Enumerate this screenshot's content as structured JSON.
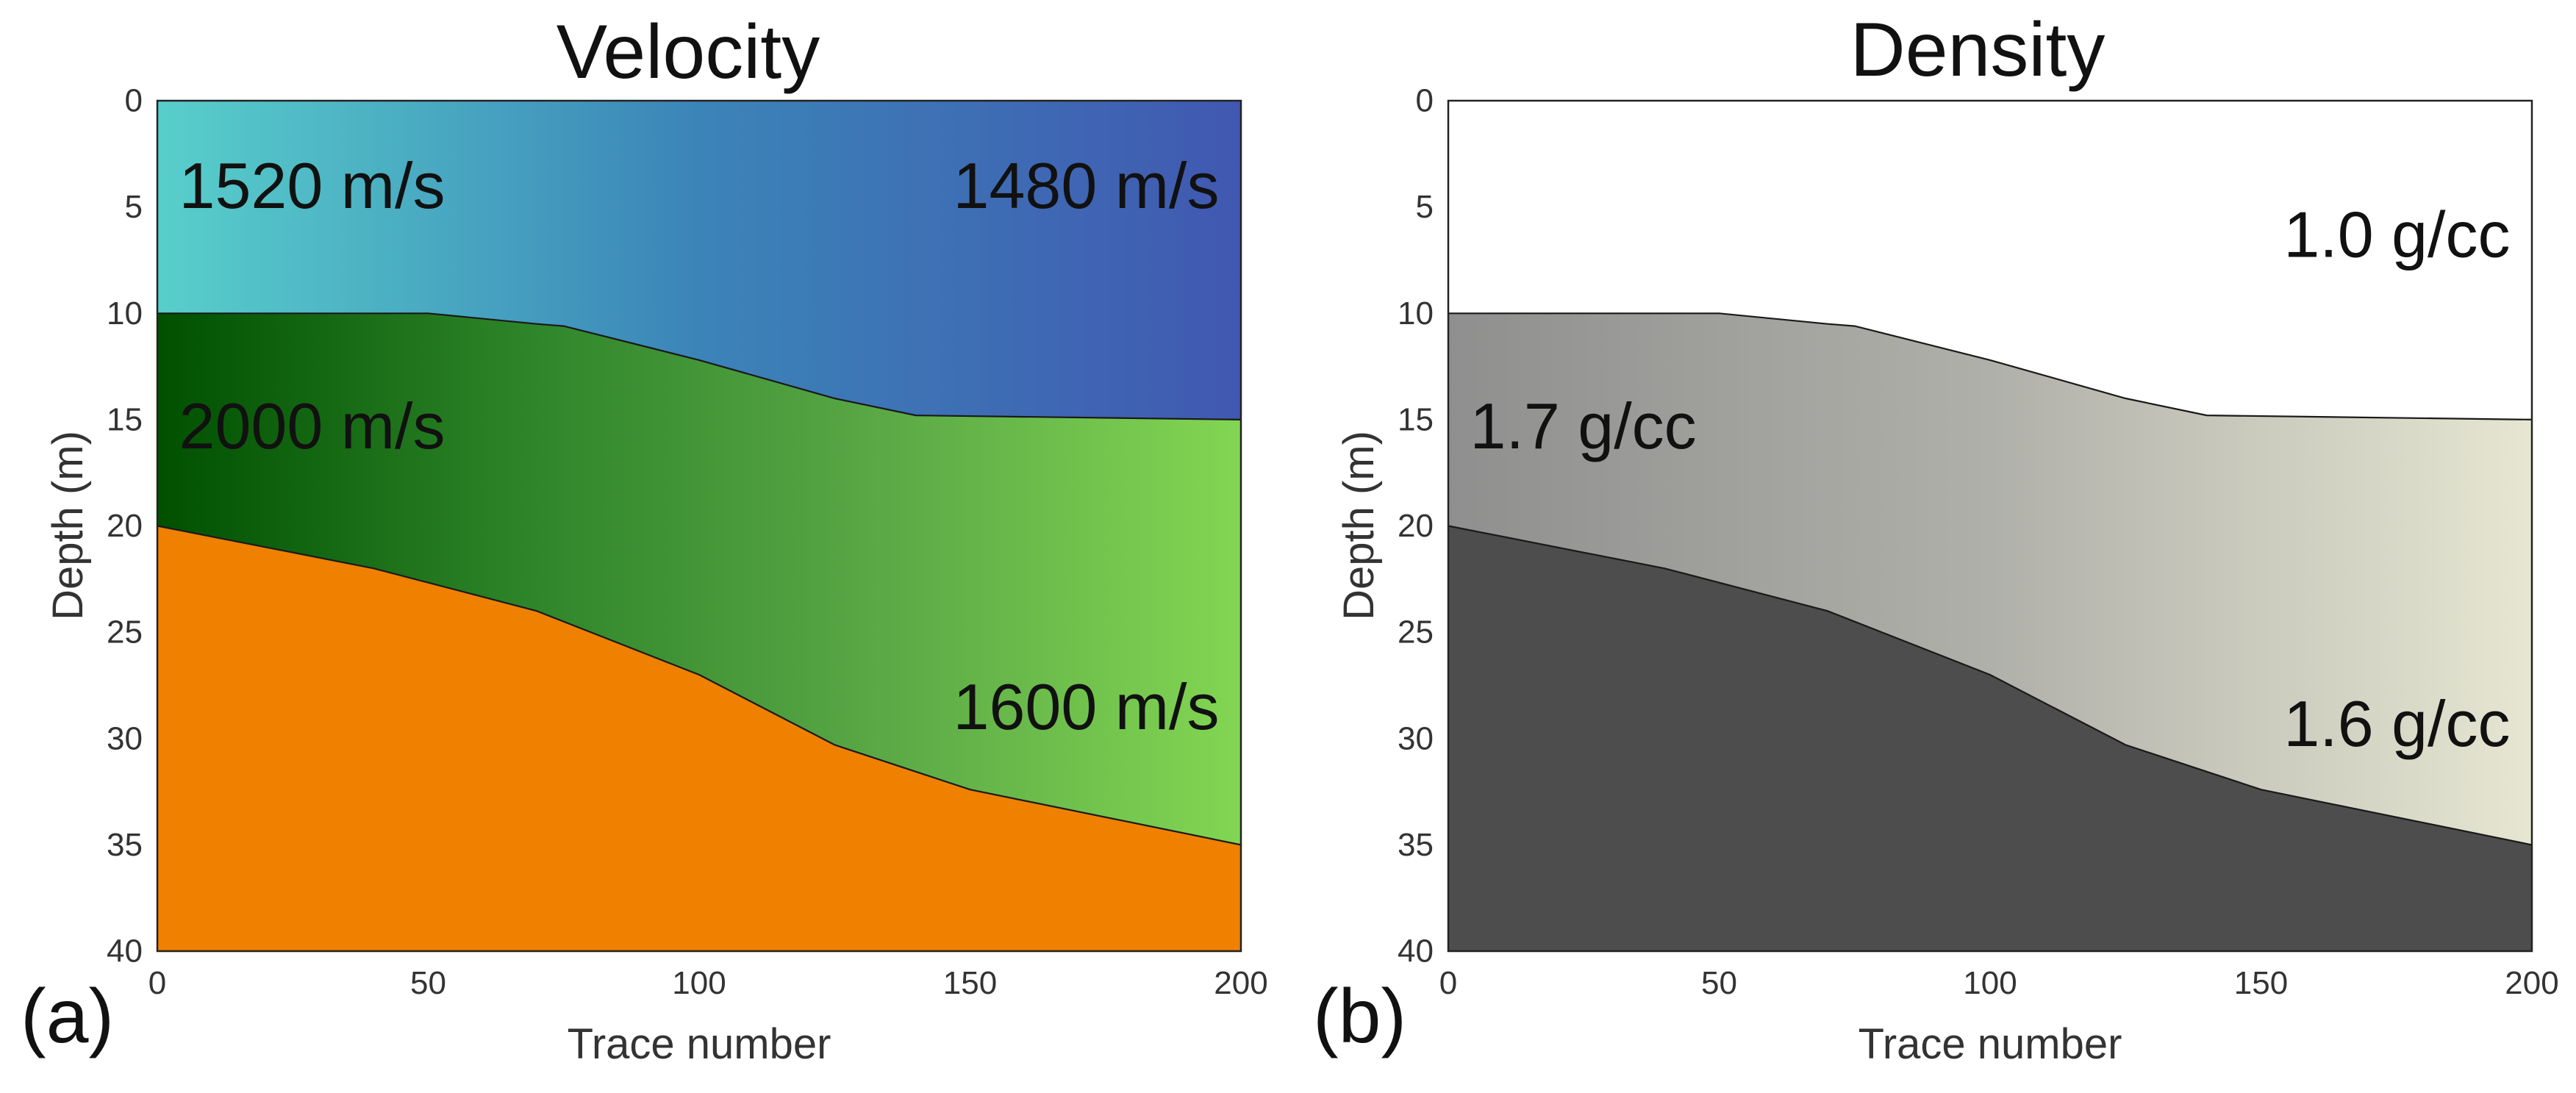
{
  "chart_data": [
    {
      "type": "area",
      "panel_label": "(a)",
      "title": "Velocity",
      "xlabel": "Trace number",
      "ylabel": "Depth (m)",
      "xlim": [
        0,
        200
      ],
      "ylim": [
        0,
        40
      ],
      "y_inverted": true,
      "xticks": [
        0,
        50,
        100,
        150,
        200
      ],
      "yticks": [
        0,
        5,
        10,
        15,
        20,
        25,
        30,
        35,
        40
      ],
      "grid": false,
      "interfaces": {
        "top_layer_base": {
          "x": [
            0,
            50,
            70,
            75,
            100,
            125,
            140,
            200
          ],
          "y": [
            10,
            10,
            10.5,
            10.6,
            12.2,
            14,
            14.8,
            15
          ]
        },
        "middle_layer_base": {
          "x": [
            0,
            40,
            70,
            100,
            125,
            150,
            200
          ],
          "y": [
            20,
            22,
            24,
            27,
            30.3,
            32.4,
            35
          ]
        }
      },
      "layers": [
        {
          "name": "Top layer",
          "colors": [
            "#58cfcb",
            "#3b84b8",
            "#4158b1"
          ]
        },
        {
          "name": "Middle layer",
          "colors": [
            "#005000",
            "#2d8428",
            "#5aa846",
            "#82d652"
          ]
        },
        {
          "name": "Bottom layer",
          "colors": [
            "#f08000"
          ]
        }
      ],
      "annotations": [
        {
          "text": "1520 m/s",
          "x": 4,
          "y": 4,
          "anchor": "start"
        },
        {
          "text": "1480 m/s",
          "x": 196,
          "y": 4,
          "anchor": "end"
        },
        {
          "text": "2000 m/s",
          "x": 4,
          "y": 15.3,
          "anchor": "start"
        },
        {
          "text": "1600 m/s",
          "x": 196,
          "y": 28.5,
          "anchor": "end"
        }
      ]
    },
    {
      "type": "area",
      "panel_label": "(b)",
      "title": "Density",
      "xlabel": "Trace number",
      "ylabel": "Depth (m)",
      "xlim": [
        0,
        200
      ],
      "ylim": [
        0,
        40
      ],
      "y_inverted": true,
      "xticks": [
        0,
        50,
        100,
        150,
        200
      ],
      "yticks": [
        0,
        5,
        10,
        15,
        20,
        25,
        30,
        35,
        40
      ],
      "grid": false,
      "interfaces": {
        "top_layer_base": {
          "x": [
            0,
            50,
            70,
            75,
            100,
            125,
            140,
            200
          ],
          "y": [
            10,
            10,
            10.5,
            10.6,
            12.2,
            14,
            14.8,
            15
          ]
        },
        "middle_layer_base": {
          "x": [
            0,
            40,
            70,
            100,
            125,
            150,
            200
          ],
          "y": [
            20,
            22,
            24,
            27,
            30.3,
            32.4,
            35
          ]
        }
      },
      "layers": [
        {
          "name": "Top layer",
          "colors": [
            "#ffffff"
          ]
        },
        {
          "name": "Middle layer",
          "colors": [
            "#8f8f8f",
            "#b0b0aa",
            "#e6e6d2"
          ]
        },
        {
          "name": "Bottom layer",
          "colors": [
            "#4d4d4d"
          ]
        }
      ],
      "annotations": [
        {
          "text": "1.0 g/cc",
          "x": 196,
          "y": 6.3,
          "anchor": "end"
        },
        {
          "text": "1.7 g/cc",
          "x": 4,
          "y": 15.3,
          "anchor": "start"
        },
        {
          "text": "1.6 g/cc",
          "x": 196,
          "y": 29.3,
          "anchor": "end"
        }
      ]
    }
  ]
}
